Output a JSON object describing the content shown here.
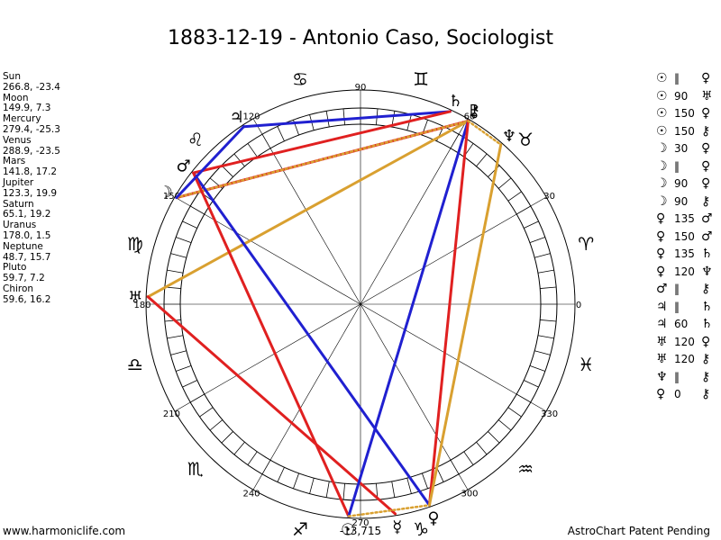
{
  "title": "1883-12-19 - Antonio Caso, Sociologist",
  "planet_positions": [
    {
      "name": "Sun",
      "coords": "266.8, -23.4"
    },
    {
      "name": "Moon",
      "coords": "149.9, 7.3"
    },
    {
      "name": "Mercury",
      "coords": "279.4, -25.3"
    },
    {
      "name": "Venus",
      "coords": "288.9, -23.5"
    },
    {
      "name": "Mars",
      "coords": "141.8, 17.2"
    },
    {
      "name": "Jupiter",
      "coords": "123.3, 19.9"
    },
    {
      "name": "Saturn",
      "coords": "65.1, 19.2"
    },
    {
      "name": "Uranus",
      "coords": "178.0, 1.5"
    },
    {
      "name": "Neptune",
      "coords": "48.7, 15.7"
    },
    {
      "name": "Pluto",
      "coords": "59.7, 7.2"
    },
    {
      "name": "Chiron",
      "coords": "59.6, 16.2"
    }
  ],
  "aspect_list": [
    {
      "p1": "☉",
      "aspect": "‖",
      "p2": "♀"
    },
    {
      "p1": "☉",
      "aspect": "90",
      "p2": "♅"
    },
    {
      "p1": "☉",
      "aspect": "150",
      "p2": "♀"
    },
    {
      "p1": "☉",
      "aspect": "150",
      "p2": "⚷"
    },
    {
      "p1": "☽",
      "aspect": "30",
      "p2": "♀"
    },
    {
      "p1": "☽",
      "aspect": "‖",
      "p2": "♀"
    },
    {
      "p1": "☽",
      "aspect": "90",
      "p2": "♀"
    },
    {
      "p1": "☽",
      "aspect": "90",
      "p2": "⚷"
    },
    {
      "p1": "♀",
      "aspect": "135",
      "p2": "♂"
    },
    {
      "p1": "♀",
      "aspect": "150",
      "p2": "♂"
    },
    {
      "p1": "♀",
      "aspect": "135",
      "p2": "♄"
    },
    {
      "p1": "♀",
      "aspect": "120",
      "p2": "♆"
    },
    {
      "p1": "♂",
      "aspect": "‖",
      "p2": "⚷"
    },
    {
      "p1": "♃",
      "aspect": "‖",
      "p2": "♄"
    },
    {
      "p1": "♃",
      "aspect": "60",
      "p2": "♄"
    },
    {
      "p1": "♅",
      "aspect": "120",
      "p2": "♀"
    },
    {
      "p1": "♅",
      "aspect": "120",
      "p2": "⚷"
    },
    {
      "p1": "♆",
      "aspect": "‖",
      "p2": "⚷"
    },
    {
      "p1": "♀",
      "aspect": "0",
      "p2": "⚷"
    }
  ],
  "degree_labels": [
    "0",
    "30",
    "60",
    "90",
    "120",
    "150",
    "180",
    "210",
    "240",
    "270",
    "300",
    "330"
  ],
  "bottom_readout": "-13,715",
  "footer_left": "www.harmoniclife.com",
  "footer_right": "AstroChart Patent Pending",
  "wheel": {
    "zodiac_signs": [
      {
        "name": "aries-glyph",
        "glyph": "♈",
        "lon": 15
      },
      {
        "name": "taurus-glyph",
        "glyph": "♉",
        "lon": 45
      },
      {
        "name": "gemini-glyph",
        "glyph": "♊",
        "lon": 75
      },
      {
        "name": "cancer-glyph",
        "glyph": "♋",
        "lon": 105
      },
      {
        "name": "leo-glyph",
        "glyph": "♌",
        "lon": 135
      },
      {
        "name": "virgo-glyph",
        "glyph": "♍",
        "lon": 165
      },
      {
        "name": "libra-glyph",
        "glyph": "♎",
        "lon": 195
      },
      {
        "name": "scorpio-glyph",
        "glyph": "♏",
        "lon": 225
      },
      {
        "name": "sagittarius-glyph",
        "glyph": "♐",
        "lon": 255
      },
      {
        "name": "capricorn-glyph",
        "glyph": "♑",
        "lon": 285
      },
      {
        "name": "aquarius-glyph",
        "glyph": "♒",
        "lon": 315
      },
      {
        "name": "pisces-glyph",
        "glyph": "♓",
        "lon": 345
      }
    ],
    "planets": [
      {
        "name": "sun-glyph",
        "glyph": "☉",
        "lon": 266.8
      },
      {
        "name": "moon-glyph",
        "glyph": "☽",
        "lon": 149.9
      },
      {
        "name": "mercury-glyph",
        "glyph": "☿",
        "lon": 279.4
      },
      {
        "name": "venus-glyph",
        "glyph": "♀",
        "lon": 288.9
      },
      {
        "name": "mars-glyph",
        "glyph": "♂",
        "lon": 141.8
      },
      {
        "name": "jupiter-glyph",
        "glyph": "♃",
        "lon": 123.3
      },
      {
        "name": "saturn-glyph",
        "glyph": "♄",
        "lon": 65.1
      },
      {
        "name": "uranus-glyph",
        "glyph": "♅",
        "lon": 178.0
      },
      {
        "name": "neptune-glyph",
        "glyph": "♆",
        "lon": 48.7
      },
      {
        "name": "pluto-glyph",
        "glyph": "♇",
        "lon": 59.7
      },
      {
        "name": "chiron-glyph",
        "glyph": "⚷",
        "lon": 59.6
      }
    ],
    "aspect_lines": [
      {
        "a": 123.3,
        "b": 65.1,
        "color": "#2020d0",
        "style": "solid"
      },
      {
        "a": 149.9,
        "b": 59.6,
        "color": "#e02020",
        "style": "solid"
      },
      {
        "a": 178.0,
        "b": 59.6,
        "color": "#d9a030",
        "style": "solid"
      },
      {
        "a": 149.9,
        "b": 59.6,
        "color": "#d9a030",
        "style": "dotted"
      },
      {
        "a": 141.8,
        "b": 65.1,
        "color": "#e02020",
        "style": "solid"
      },
      {
        "a": 141.8,
        "b": 288.9,
        "color": "#2020d0",
        "style": "solid"
      },
      {
        "a": 141.8,
        "b": 266.8,
        "color": "#e02020",
        "style": "solid"
      },
      {
        "a": 149.9,
        "b": 123.3,
        "color": "#2020d0",
        "style": "solid"
      },
      {
        "a": 178.0,
        "b": 279.4,
        "color": "#e02020",
        "style": "solid"
      },
      {
        "a": 266.8,
        "b": 59.6,
        "color": "#2020d0",
        "style": "solid"
      },
      {
        "a": 288.9,
        "b": 59.6,
        "color": "#e02020",
        "style": "solid"
      },
      {
        "a": 288.9,
        "b": 48.7,
        "color": "#d9a030",
        "style": "solid"
      },
      {
        "a": 59.6,
        "b": 48.7,
        "color": "#d9a030",
        "style": "dotted"
      },
      {
        "a": 266.8,
        "b": 288.9,
        "color": "#d9a030",
        "style": "dotted"
      }
    ]
  },
  "colors": {
    "red_aspect": "#e02020",
    "blue_aspect": "#2020d0",
    "gold_aspect": "#d9a030"
  }
}
